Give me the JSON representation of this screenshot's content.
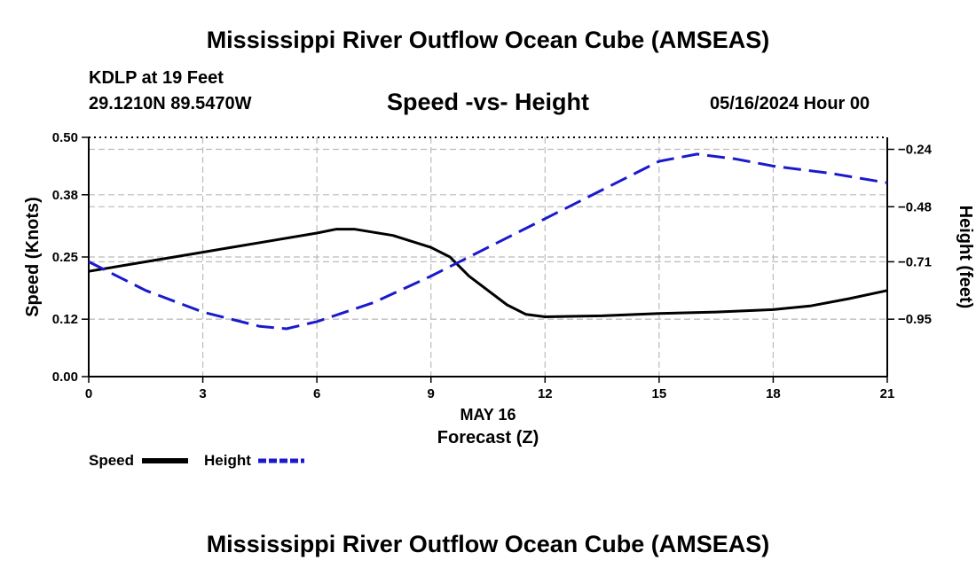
{
  "header": {
    "title": "Mississippi River Outflow Ocean Cube (AMSEAS)",
    "station": "KDLP at 19 Feet",
    "coords": "29.1210N  89.5470W",
    "subtitle": "Speed -vs- Height",
    "datetime": "05/16/2024 Hour 00"
  },
  "footer": {
    "title": "Mississippi River Outflow Ocean Cube (AMSEAS)"
  },
  "legend": {
    "speed_label": "Speed",
    "height_label": "Height"
  },
  "colors": {
    "speed": "#000000",
    "height": "#1a1acc",
    "grid": "#bbbbbb"
  },
  "chart_data": {
    "type": "line",
    "title": "Speed -vs- Height",
    "xlabel": "Forecast (Z)",
    "xsublabel": "MAY 16",
    "ylabel": "Speed (Knots)",
    "y2label": "Height (feet)",
    "xlim": [
      0,
      21
    ],
    "x_ticks": [
      0,
      3,
      6,
      9,
      12,
      15,
      18,
      21
    ],
    "ylim": [
      0,
      0.5
    ],
    "y_ticks": [
      0.0,
      0.12,
      0.25,
      0.38,
      0.5
    ],
    "y_tick_labels": [
      "0.00",
      "0.12",
      "0.25",
      "0.38",
      "0.50"
    ],
    "y2lim": [
      -1.19,
      -0.19
    ],
    "y2_ticks": [
      -0.24,
      -0.48,
      -0.71,
      -0.95
    ],
    "y2_tick_labels": [
      "-0.24",
      "-0.48",
      "-0.71",
      "-0.95"
    ],
    "grid": true,
    "series": [
      {
        "name": "Speed",
        "axis": "left",
        "style": "solid",
        "x": [
          0,
          1.5,
          3,
          4.5,
          6,
          6.5,
          7,
          8,
          9,
          9.5,
          10,
          11,
          11.5,
          12,
          13.5,
          15,
          16.5,
          18,
          19,
          20,
          21
        ],
        "values": [
          0.22,
          0.24,
          0.26,
          0.28,
          0.3,
          0.308,
          0.308,
          0.295,
          0.27,
          0.25,
          0.21,
          0.15,
          0.13,
          0.125,
          0.127,
          0.132,
          0.135,
          0.14,
          0.148,
          0.163,
          0.18
        ]
      },
      {
        "name": "Height",
        "axis": "right",
        "style": "dashed",
        "x": [
          0,
          1.5,
          3,
          4.5,
          5.2,
          6,
          7.5,
          9,
          10.5,
          12,
          13.5,
          15,
          16,
          17,
          18,
          19.5,
          21
        ],
        "values": [
          -0.71,
          -0.83,
          -0.92,
          -0.98,
          -0.99,
          -0.96,
          -0.88,
          -0.77,
          -0.65,
          -0.53,
          -0.41,
          -0.29,
          -0.26,
          -0.28,
          -0.31,
          -0.34,
          -0.38
        ]
      }
    ]
  }
}
